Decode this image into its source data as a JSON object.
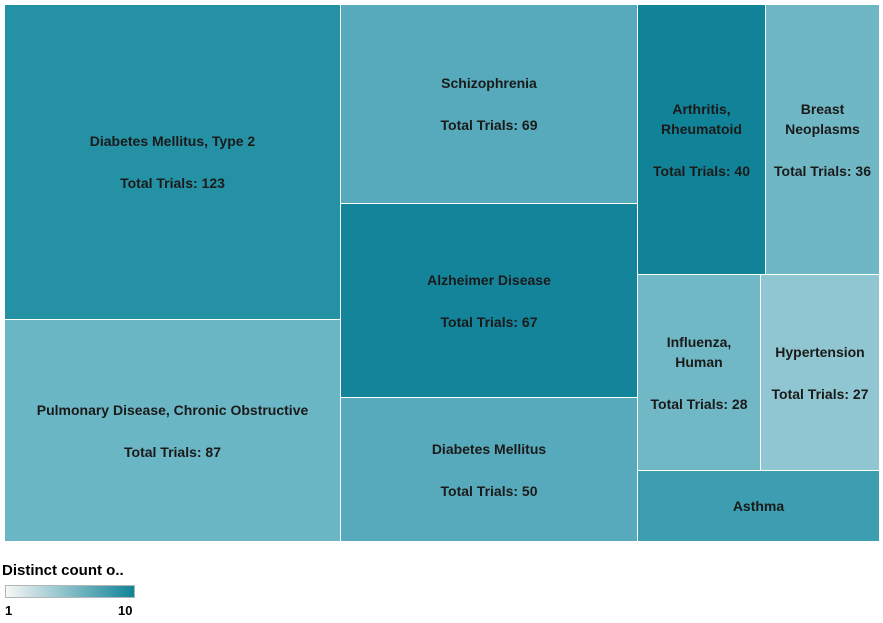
{
  "chart_data": {
    "type": "treemap",
    "measure_label": "Total Trials",
    "color_legend": {
      "title": "Distinct count o..",
      "min": "1",
      "max": "10",
      "min_color": "#f7f7f7",
      "max_color": "#118398"
    },
    "items": [
      {
        "label": "Diabetes Mellitus, Type 2",
        "value_text": "Total Trials: 123",
        "value": 123,
        "color": "#2591a5"
      },
      {
        "label": "Pulmonary Disease, Chronic Obstructive",
        "value_text": "Total Trials: 87",
        "value": 87,
        "color": "#6bb6c4"
      },
      {
        "label": "Schizophrenia",
        "value_text": "Total Trials: 69",
        "value": 69,
        "color": "#57aabb"
      },
      {
        "label": "Alzheimer Disease",
        "value_text": "Total Trials: 67",
        "value": 67,
        "color": "#13849a"
      },
      {
        "label": "Diabetes Mellitus",
        "value_text": "Total Trials: 50",
        "value": 50,
        "color": "#57aabb"
      },
      {
        "label": "Arthritis, Rheumatoid",
        "value_text": "Total Trials: 40",
        "value": 40,
        "color": "#118398"
      },
      {
        "label": "Breast Neoplasms",
        "value_text": "Total Trials: 36",
        "value": 36,
        "color": "#70b7c5"
      },
      {
        "label": "Influenza, Human",
        "value_text": "Total Trials: 28",
        "value": 28,
        "color": "#71b8c6"
      },
      {
        "label": "Hypertension",
        "value_text": "Total Trials: 27",
        "value": 27,
        "color": "#8fc6d1"
      },
      {
        "label": "Asthma",
        "value_text": "",
        "value": null,
        "color": "#3c9eb0"
      }
    ]
  }
}
